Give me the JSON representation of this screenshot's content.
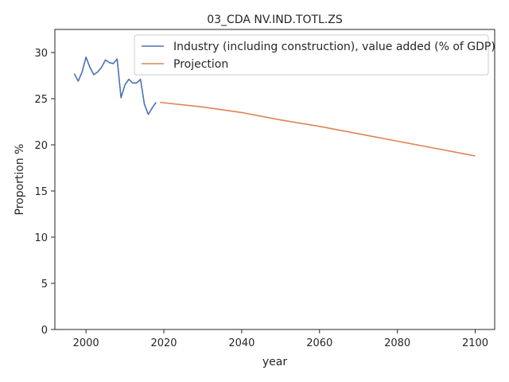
{
  "chart_data": {
    "type": "line",
    "title": "03_CDA NV.IND.TOTL.ZS",
    "xlabel": "year",
    "ylabel": "Proportion %",
    "xlim": [
      1992,
      2105
    ],
    "ylim": [
      0,
      32.5
    ],
    "xticks": [
      2000,
      2020,
      2040,
      2060,
      2080,
      2100
    ],
    "yticks": [
      0,
      5,
      10,
      15,
      20,
      25,
      30
    ],
    "grid": false,
    "legend_position": "top-right",
    "series": [
      {
        "name": "Industry (including construction), value added (% of GDP)",
        "color": "#4c72b0",
        "x": [
          1997,
          1998,
          1999,
          2000,
          2001,
          2002,
          2003,
          2004,
          2005,
          2006,
          2007,
          2008,
          2009,
          2010,
          2011,
          2012,
          2013,
          2014,
          2015,
          2016,
          2017,
          2018
        ],
        "y": [
          27.7,
          26.9,
          27.9,
          29.5,
          28.4,
          27.6,
          27.9,
          28.4,
          29.2,
          28.9,
          28.8,
          29.3,
          25.1,
          26.5,
          27.1,
          26.7,
          26.7,
          27.1,
          24.4,
          23.3,
          24.0,
          24.6
        ]
      },
      {
        "name": "Projection",
        "color": "#dd8452",
        "x": [
          2019,
          2030,
          2040,
          2050,
          2060,
          2070,
          2080,
          2090,
          2100
        ],
        "y": [
          24.6,
          24.1,
          23.5,
          22.7,
          22.0,
          21.2,
          20.4,
          19.6,
          18.8
        ]
      }
    ]
  }
}
